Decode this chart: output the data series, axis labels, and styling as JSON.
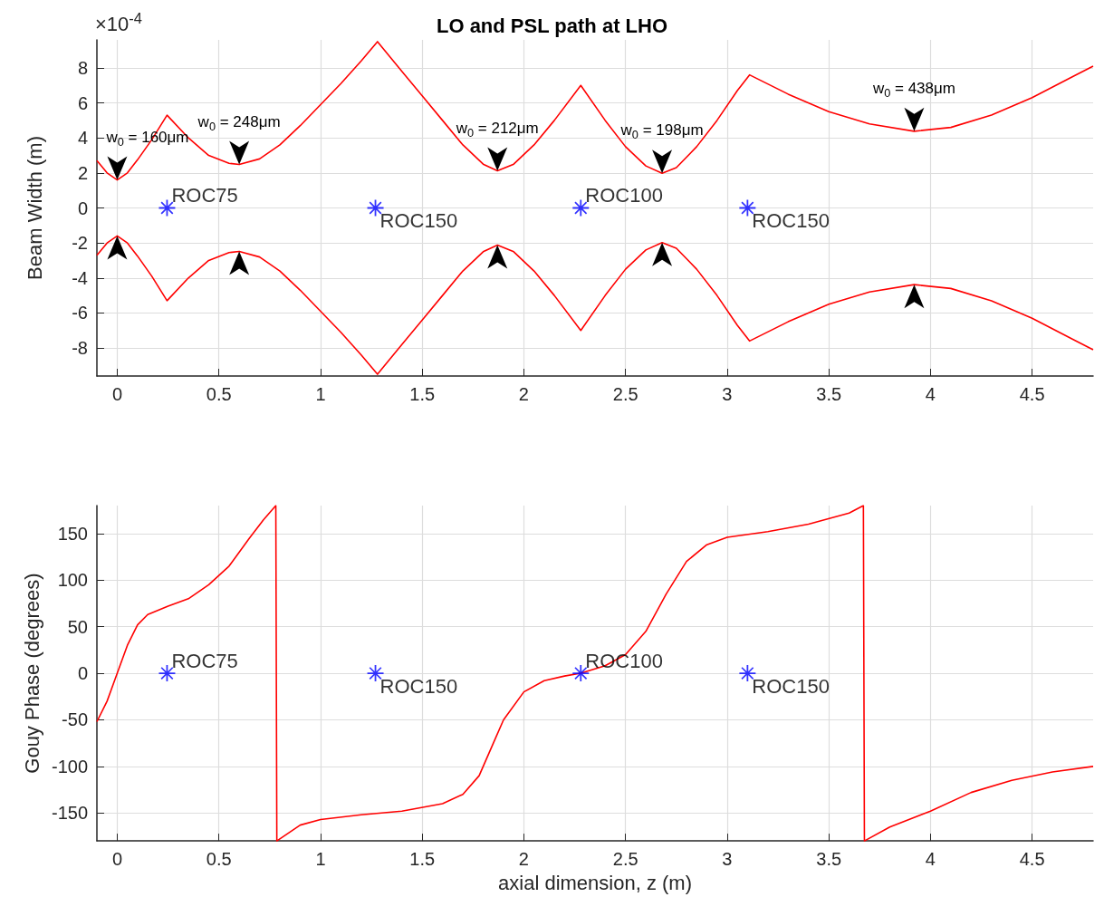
{
  "chart_data": [
    {
      "type": "line",
      "title": "LO and PSL path at LHO",
      "ylabel": "Beam Width (m)",
      "xlim": [
        -0.1,
        4.8
      ],
      "ylim": [
        -9.6,
        9.6
      ],
      "xticks": [
        0,
        0.5,
        1,
        1.5,
        2,
        2.5,
        3,
        3.5,
        4,
        4.5
      ],
      "yticks": [
        -8,
        -6,
        -4,
        -2,
        0,
        2,
        4,
        6,
        8
      ],
      "grid": true,
      "series": [
        {
          "color": "#ff0000",
          "x": [
            -0.1,
            -0.05,
            0,
            0.05,
            0.1,
            0.17,
            0.245,
            0.35,
            0.45,
            0.55,
            0.6,
            0.7,
            0.8,
            0.9,
            1.0,
            1.1,
            1.2,
            1.28,
            1.4,
            1.5,
            1.6,
            1.7,
            1.8,
            1.87,
            1.95,
            2.05,
            2.15,
            2.28,
            2.4,
            2.5,
            2.6,
            2.68,
            2.75,
            2.85,
            2.95,
            3.05,
            3.11,
            3.3,
            3.5,
            3.7,
            3.92,
            4.1,
            4.3,
            4.5,
            4.7,
            4.8
          ],
          "values": [
            2.7,
            2.0,
            1.6,
            2.0,
            2.75,
            3.9,
            5.3,
            4.0,
            3.0,
            2.55,
            2.48,
            2.8,
            3.6,
            4.7,
            5.9,
            7.1,
            8.4,
            9.5,
            7.8,
            6.4,
            5.0,
            3.6,
            2.5,
            2.12,
            2.5,
            3.6,
            5.0,
            7.0,
            5.0,
            3.5,
            2.4,
            1.98,
            2.3,
            3.5,
            5.0,
            6.7,
            7.6,
            6.5,
            5.5,
            4.8,
            4.38,
            4.6,
            5.3,
            6.3,
            7.5,
            8.1
          ]
        },
        {
          "color": "#ff0000",
          "x": [
            -0.1,
            -0.05,
            0,
            0.05,
            0.1,
            0.17,
            0.245,
            0.35,
            0.45,
            0.55,
            0.6,
            0.7,
            0.8,
            0.9,
            1.0,
            1.1,
            1.2,
            1.28,
            1.4,
            1.5,
            1.6,
            1.7,
            1.8,
            1.87,
            1.95,
            2.05,
            2.15,
            2.28,
            2.4,
            2.5,
            2.6,
            2.68,
            2.75,
            2.85,
            2.95,
            3.05,
            3.11,
            3.3,
            3.5,
            3.7,
            3.92,
            4.1,
            4.3,
            4.5,
            4.7,
            4.8
          ],
          "values": [
            -2.7,
            -2.0,
            -1.6,
            -2.0,
            -2.75,
            -3.9,
            -5.3,
            -4.0,
            -3.0,
            -2.55,
            -2.48,
            -2.8,
            -3.6,
            -4.7,
            -5.9,
            -7.1,
            -8.4,
            -9.5,
            -7.8,
            -6.4,
            -5.0,
            -3.6,
            -2.5,
            -2.12,
            -2.5,
            -3.6,
            -5.0,
            -7.0,
            -5.0,
            -3.5,
            -2.4,
            -1.98,
            -2.3,
            -3.5,
            -5.0,
            -6.7,
            -7.6,
            -6.5,
            -5.5,
            -4.8,
            -4.38,
            -4.6,
            -5.3,
            -6.3,
            -7.5,
            -8.1
          ]
        },
        {
          "type": "scatter",
          "color": "#0000ff",
          "marker": "star",
          "x": [
            0.245,
            1.27,
            2.28,
            3.1
          ],
          "values": [
            0,
            0,
            0,
            0
          ],
          "value_labels": [
            "ROC75",
            "ROC150",
            "ROC100",
            "ROC150"
          ]
        }
      ],
      "annotations": [
        "×10$^{-4}$",
        {
          "text": "w$_{0}$ = 160μm",
          "x": 0,
          "y": 1.6
        },
        {
          "text": "w$_{0}$ = 248μm",
          "x": 0.6,
          "y": 2.48
        },
        {
          "text": "w$_{0}$ = 212μm",
          "x": 1.87,
          "y": 2.12
        },
        {
          "text": "w$_{0}$ = 198μm",
          "x": 2.68,
          "y": 1.98
        },
        {
          "text": "w$_{0}$ = 438μm",
          "x": 3.92,
          "y": 4.38
        }
      ]
    },
    {
      "type": "line",
      "xlabel": "axial dimension, z (m)",
      "ylabel": "Gouy Phase (degrees)",
      "xlim": [
        -0.1,
        4.8
      ],
      "ylim": [
        -180,
        180
      ],
      "xticks": [
        0,
        0.5,
        1,
        1.5,
        2,
        2.5,
        3,
        3.5,
        4,
        4.5
      ],
      "yticks": [
        -150,
        -100,
        -50,
        0,
        50,
        100,
        150
      ],
      "grid": true,
      "series": [
        {
          "color": "#ff0000",
          "x": [
            -0.1,
            -0.05,
            0,
            0.05,
            0.1,
            0.15,
            0.25,
            0.35,
            0.45,
            0.55,
            0.65,
            0.72,
            0.78,
            0.785,
            0.9,
            1.0,
            1.2,
            1.4,
            1.6,
            1.7,
            1.78,
            1.85,
            1.9,
            2.0,
            2.1,
            2.2,
            2.28,
            2.4,
            2.5,
            2.6,
            2.7,
            2.8,
            2.9,
            3.0,
            3.2,
            3.4,
            3.6,
            3.67,
            3.675,
            3.8,
            4.0,
            4.2,
            4.4,
            4.6,
            4.8
          ],
          "values": [
            -52,
            -30,
            0,
            30,
            52,
            63,
            72,
            80,
            95,
            115,
            145,
            165,
            180,
            -180,
            -163,
            -157,
            -152,
            -148,
            -140,
            -130,
            -110,
            -75,
            -50,
            -20,
            -8,
            -3,
            0,
            8,
            20,
            45,
            85,
            120,
            138,
            146,
            152,
            160,
            172,
            180,
            -180,
            -165,
            -148,
            -128,
            -115,
            -106,
            -100
          ]
        },
        {
          "type": "scatter",
          "color": "#0000ff",
          "marker": "star",
          "x": [
            0.245,
            1.27,
            2.28,
            3.1
          ],
          "values": [
            0,
            0,
            0,
            0
          ],
          "value_labels": [
            "ROC75",
            "ROC150",
            "ROC100",
            "ROC150"
          ]
        }
      ]
    }
  ]
}
